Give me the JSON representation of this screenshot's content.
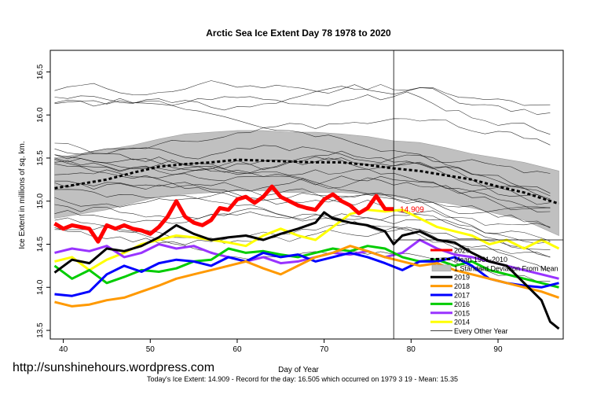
{
  "chart_data": {
    "type": "line",
    "title": "Arctic Sea Ice Extent Day 78 1978 to 2020",
    "xlabel": "Day of Year",
    "ylabel": "Ice Extent in millions of sq. km.",
    "xlim": [
      38.5,
      97.5
    ],
    "ylim": [
      13.4,
      16.75
    ],
    "x_ticks": [
      40,
      50,
      60,
      70,
      80,
      90
    ],
    "y_ticks": [
      13.5,
      14.0,
      14.5,
      15.0,
      15.5,
      16.0,
      16.5
    ],
    "x_tick_labels": [
      "40",
      "50",
      "60",
      "70",
      "80",
      "90"
    ],
    "y_tick_labels": [
      "13.5",
      "14.0",
      "14.5",
      "15.0",
      "15.5",
      "16.0",
      "16.5"
    ],
    "current_day": 78,
    "today_value_label": "14.909",
    "mean_line": {
      "name": "Mean 1981-2010",
      "color": "#000000",
      "x": [
        39,
        42,
        45,
        48,
        51,
        54,
        57,
        60,
        63,
        66,
        69,
        72,
        75,
        78,
        81,
        84,
        87,
        90,
        93,
        97
      ],
      "y": [
        15.15,
        15.2,
        15.25,
        15.33,
        15.4,
        15.43,
        15.45,
        15.48,
        15.47,
        15.46,
        15.45,
        15.45,
        15.42,
        15.38,
        15.35,
        15.3,
        15.25,
        15.17,
        15.1,
        14.97
      ]
    },
    "std_band": {
      "name": "1 Standard Deviation From Mean",
      "color": "#c0c0c0",
      "x": [
        39,
        42,
        45,
        48,
        51,
        54,
        57,
        60,
        63,
        66,
        69,
        72,
        75,
        78,
        81,
        84,
        87,
        90,
        93,
        97
      ],
      "upper": [
        15.5,
        15.55,
        15.6,
        15.65,
        15.72,
        15.78,
        15.8,
        15.82,
        15.82,
        15.8,
        15.8,
        15.78,
        15.75,
        15.7,
        15.68,
        15.62,
        15.55,
        15.5,
        15.45,
        15.35
      ],
      "lower": [
        14.8,
        14.85,
        14.9,
        14.98,
        15.05,
        15.08,
        15.1,
        15.12,
        15.12,
        15.1,
        15.1,
        15.1,
        15.08,
        15.05,
        15.0,
        14.98,
        14.92,
        14.85,
        14.78,
        14.6
      ]
    },
    "series": [
      {
        "name": "2020",
        "color": "#ff0000",
        "width": 5,
        "x": [
          39,
          40,
          41,
          42,
          43,
          44,
          45,
          46,
          47,
          48,
          49,
          50,
          51,
          52,
          53,
          54,
          55,
          56,
          57,
          58,
          59,
          60,
          61,
          62,
          63,
          64,
          65,
          66,
          67,
          68,
          69,
          70,
          71,
          72,
          73,
          74,
          75,
          76,
          77,
          78
        ],
        "y": [
          14.74,
          14.68,
          14.72,
          14.7,
          14.68,
          14.53,
          14.72,
          14.68,
          14.72,
          14.68,
          14.66,
          14.62,
          14.7,
          14.82,
          15.0,
          14.82,
          14.75,
          14.72,
          14.78,
          14.92,
          14.9,
          15.02,
          15.05,
          14.98,
          15.05,
          15.17,
          15.05,
          15.0,
          14.95,
          14.92,
          14.9,
          15.02,
          15.08,
          15.0,
          14.95,
          14.86,
          14.92,
          15.06,
          14.91,
          14.909
        ]
      },
      {
        "name": "2019",
        "color": "#000000",
        "width": 3,
        "x": [
          39,
          41,
          43,
          45,
          47,
          49,
          51,
          53,
          55,
          57,
          59,
          61,
          63,
          65,
          67,
          69,
          70,
          71,
          73,
          75,
          77,
          78,
          79,
          81,
          83,
          85,
          87,
          89,
          91,
          93,
          95,
          96,
          97
        ],
        "y": [
          14.17,
          14.32,
          14.28,
          14.45,
          14.42,
          14.48,
          14.58,
          14.72,
          14.62,
          14.55,
          14.58,
          14.6,
          14.55,
          14.62,
          14.68,
          14.75,
          14.87,
          14.8,
          14.75,
          14.72,
          14.65,
          14.5,
          14.6,
          14.65,
          14.55,
          14.52,
          14.4,
          14.3,
          14.25,
          14.05,
          13.85,
          13.6,
          13.52
        ]
      },
      {
        "name": "2018",
        "color": "#ff9900",
        "width": 3,
        "x": [
          39,
          41,
          43,
          45,
          47,
          49,
          51,
          53,
          55,
          57,
          59,
          61,
          63,
          65,
          67,
          69,
          71,
          73,
          75,
          77,
          79,
          81,
          83,
          85,
          87,
          89,
          91,
          93,
          95,
          97
        ],
        "y": [
          13.83,
          13.78,
          13.8,
          13.85,
          13.88,
          13.95,
          14.02,
          14.1,
          14.15,
          14.2,
          14.25,
          14.3,
          14.22,
          14.15,
          14.25,
          14.35,
          14.4,
          14.48,
          14.42,
          14.35,
          14.3,
          14.25,
          14.28,
          14.2,
          14.15,
          14.1,
          14.05,
          14.0,
          13.95,
          13.88
        ]
      },
      {
        "name": "2017",
        "color": "#0000ff",
        "width": 3,
        "x": [
          39,
          41,
          43,
          45,
          47,
          49,
          51,
          53,
          55,
          57,
          59,
          61,
          63,
          65,
          67,
          69,
          71,
          73,
          75,
          77,
          79,
          81,
          83,
          85,
          87,
          89,
          91,
          93,
          95,
          97
        ],
        "y": [
          13.92,
          13.9,
          13.95,
          14.15,
          14.25,
          14.18,
          14.28,
          14.32,
          14.3,
          14.25,
          14.35,
          14.3,
          14.4,
          14.35,
          14.38,
          14.3,
          14.35,
          14.4,
          14.35,
          14.28,
          14.2,
          14.3,
          14.3,
          14.35,
          14.25,
          14.1,
          14.05,
          14.02,
          14.0,
          14.05
        ]
      },
      {
        "name": "2016",
        "color": "#00cc00",
        "width": 3,
        "x": [
          39,
          41,
          43,
          45,
          47,
          49,
          51,
          53,
          55,
          57,
          59,
          61,
          63,
          65,
          67,
          69,
          71,
          73,
          75,
          77,
          79,
          81,
          83,
          85,
          87,
          89,
          91,
          93,
          95,
          97
        ],
        "y": [
          14.25,
          14.1,
          14.2,
          14.05,
          14.12,
          14.2,
          14.18,
          14.22,
          14.3,
          14.32,
          14.45,
          14.4,
          14.42,
          14.38,
          14.35,
          14.4,
          14.45,
          14.42,
          14.48,
          14.45,
          14.35,
          14.3,
          14.32,
          14.25,
          14.3,
          14.2,
          14.15,
          14.1,
          14.05,
          14.0
        ]
      },
      {
        "name": "2015",
        "color": "#9933ff",
        "width": 3,
        "x": [
          39,
          41,
          43,
          45,
          47,
          49,
          51,
          53,
          55,
          57,
          59,
          61,
          63,
          65,
          67,
          69,
          71,
          73,
          75,
          77,
          79,
          81,
          83,
          85,
          87,
          89,
          91,
          93,
          95,
          97
        ],
        "y": [
          14.4,
          14.45,
          14.42,
          14.48,
          14.35,
          14.4,
          14.5,
          14.45,
          14.48,
          14.4,
          14.35,
          14.3,
          14.35,
          14.28,
          14.3,
          14.35,
          14.4,
          14.38,
          14.42,
          14.35,
          14.4,
          14.55,
          14.45,
          14.38,
          14.35,
          14.3,
          14.25,
          14.2,
          14.15,
          14.1
        ]
      },
      {
        "name": "2014",
        "color": "#ffff00",
        "width": 3,
        "x": [
          39,
          41,
          43,
          45,
          47,
          49,
          51,
          53,
          55,
          57,
          59,
          61,
          63,
          65,
          67,
          69,
          71,
          73,
          75,
          77,
          79,
          81,
          83,
          85,
          87,
          89,
          91,
          93,
          95,
          97
        ],
        "y": [
          14.3,
          14.35,
          14.2,
          14.32,
          14.4,
          14.5,
          14.55,
          14.6,
          14.58,
          14.55,
          14.52,
          14.48,
          14.6,
          14.68,
          14.6,
          14.55,
          14.7,
          14.85,
          14.9,
          14.88,
          14.9,
          14.8,
          14.7,
          14.65,
          14.6,
          14.5,
          14.55,
          14.45,
          14.55,
          14.45
        ]
      }
    ],
    "legend": {
      "placement": "bottom-right",
      "entries": [
        {
          "label": "2020",
          "color": "#ff0000",
          "style": "solid"
        },
        {
          "label": "Mean 1981-2010",
          "color": "#000000",
          "style": "dashed"
        },
        {
          "label": "1 Standard Deviation From Mean",
          "color": "#c0c0c0",
          "style": "box"
        },
        {
          "label": "2019",
          "color": "#000000",
          "style": "solid"
        },
        {
          "label": "2018",
          "color": "#ff9900",
          "style": "solid"
        },
        {
          "label": "2017",
          "color": "#0000ff",
          "style": "solid"
        },
        {
          "label": "2016",
          "color": "#00cc00",
          "style": "solid"
        },
        {
          "label": "2015",
          "color": "#9933ff",
          "style": "solid"
        },
        {
          "label": "2014",
          "color": "#ffff00",
          "style": "solid"
        },
        {
          "label": "Every Other Year",
          "color": "#000000",
          "style": "thin"
        }
      ]
    }
  },
  "source_url": "http://sunshinehours.wordpress.com",
  "footer_text": "Today's Ice Extent: 14.909  - Record for the day: 16.505 which occurred on 1979 3 19  - Mean: 15.35"
}
